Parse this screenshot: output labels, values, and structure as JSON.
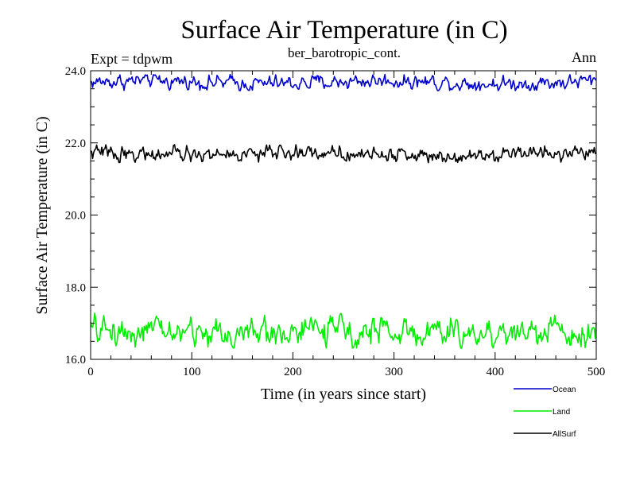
{
  "chart_data": {
    "type": "line",
    "title": "Surface Air Temperature (in C)",
    "subtitle": "ber_barotropic_cont.",
    "experiment_label": "Expt = tdpwm",
    "season_label": "Ann",
    "xlabel": "Time (in years since start)",
    "ylabel": "Surface Air Temperature (in C)",
    "xlim": [
      0,
      500
    ],
    "ylim": [
      16.0,
      24.0
    ],
    "x_ticks": [
      0,
      100,
      200,
      300,
      400,
      500
    ],
    "x_tick_labels": [
      "0",
      "100",
      "200",
      "300",
      "400",
      "500"
    ],
    "y_ticks": [
      16.0,
      18.0,
      20.0,
      22.0,
      24.0
    ],
    "y_tick_labels": [
      "16.0",
      "18.0",
      "20.0",
      "22.0",
      "24.0"
    ],
    "legend_position": "bottom-right",
    "series": [
      {
        "name": "Ocean",
        "color": "#0000cc",
        "mean": 23.68,
        "noise": 0.09,
        "min": 23.45,
        "max": 23.9,
        "n_points": 500
      },
      {
        "name": "Land",
        "color": "#00ee00",
        "mean": 16.76,
        "noise": 0.17,
        "min": 16.3,
        "max": 17.3,
        "n_points": 500
      },
      {
        "name": "AllSurf",
        "color": "#000000",
        "mean": 21.7,
        "noise": 0.09,
        "min": 21.45,
        "max": 21.95,
        "n_points": 500
      }
    ]
  }
}
